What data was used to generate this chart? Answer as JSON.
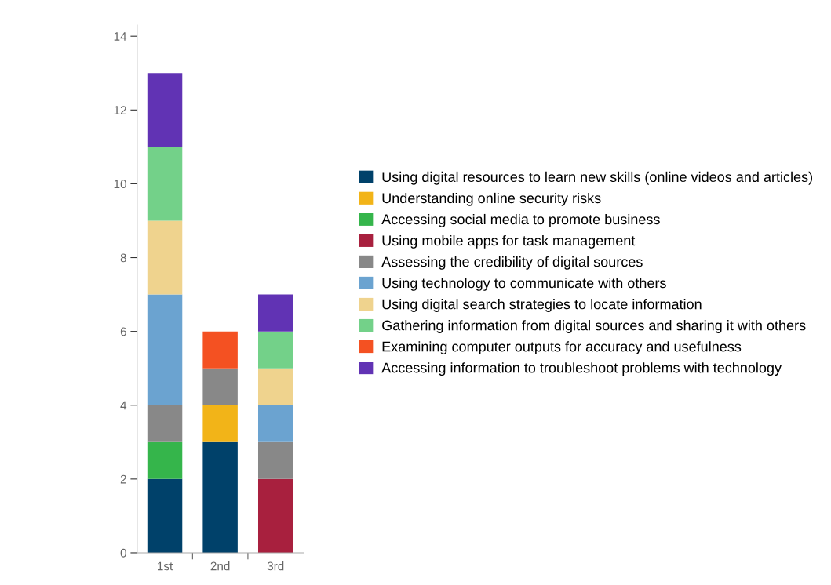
{
  "chart_data": {
    "type": "bar",
    "stacked": true,
    "categories": [
      "1st",
      "2nd",
      "3rd"
    ],
    "series": [
      {
        "name": "Using digital resources to learn new skills (online videos and articles)",
        "color": "#00416a",
        "values": [
          2,
          3,
          null
        ]
      },
      {
        "name": "Understanding online security risks",
        "color": "#f2b418",
        "values": [
          null,
          1,
          null
        ]
      },
      {
        "name": "Accessing social media to promote business",
        "color": "#35b54b",
        "values": [
          1,
          null,
          null
        ]
      },
      {
        "name": "Using mobile apps for task management",
        "color": "#a8203e",
        "values": [
          null,
          null,
          2
        ]
      },
      {
        "name": "Assessing the credibility of digital sources",
        "color": "#888888",
        "values": [
          1,
          1,
          1
        ]
      },
      {
        "name": "Using technology to communicate with others",
        "color": "#6ba3d0",
        "values": [
          3,
          null,
          1
        ]
      },
      {
        "name": "Using digital search strategies to locate information",
        "color": "#efd38e",
        "values": [
          2,
          null,
          1
        ]
      },
      {
        "name": "Gathering information from digital sources and sharing it with others",
        "color": "#73d189",
        "values": [
          2,
          null,
          1
        ]
      },
      {
        "name": "Examining computer outputs for accuracy and usefulness",
        "color": "#f45122",
        "values": [
          null,
          1,
          null
        ]
      },
      {
        "name": "Accessing information to troubleshoot problems with technology",
        "color": "#6133b4",
        "values": [
          2,
          null,
          1
        ]
      }
    ],
    "ylim": [
      0,
      14.3
    ],
    "yticks": [
      0,
      2,
      4,
      6,
      8,
      10,
      12,
      14
    ],
    "grid": false,
    "legend": "right"
  }
}
